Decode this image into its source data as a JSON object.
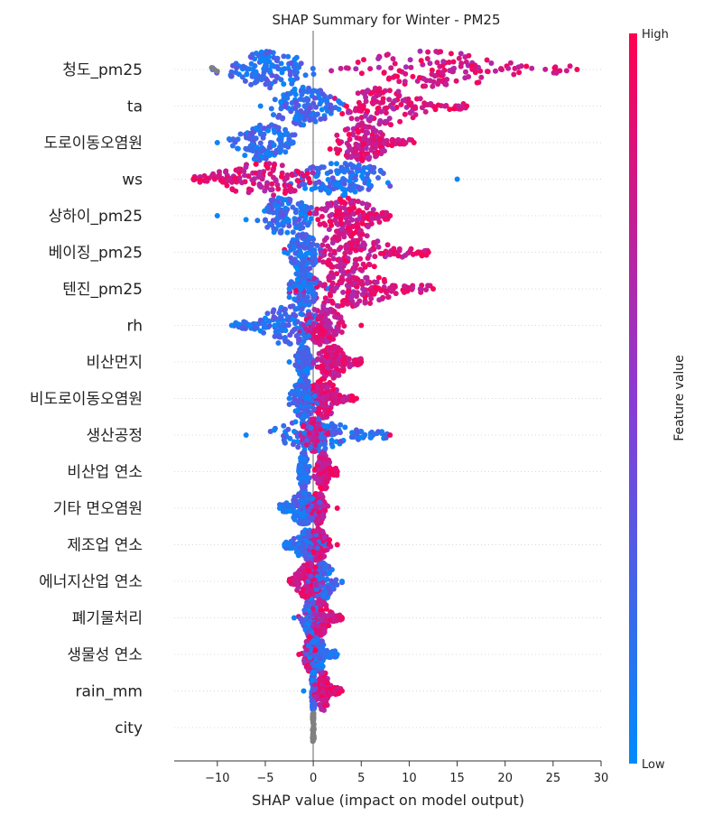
{
  "chart_data": {
    "type": "scatter",
    "subtype": "shap-beeswarm",
    "title": "SHAP Summary for Winter - PM25",
    "xlabel": "SHAP value (impact on model output)",
    "xlim": [
      -14.5,
      30
    ],
    "xticks": [
      {
        "value": -10,
        "label": "−10"
      },
      {
        "value": -5,
        "label": "−5"
      },
      {
        "value": 0,
        "label": "0"
      },
      {
        "value": 5,
        "label": "5"
      },
      {
        "value": 10,
        "label": "10"
      },
      {
        "value": 15,
        "label": "15"
      },
      {
        "value": 20,
        "label": "20"
      },
      {
        "value": 25,
        "label": "25"
      },
      {
        "value": 30,
        "label": "30"
      }
    ],
    "colorbar": {
      "label": "Feature value",
      "high": "High",
      "low": "Low",
      "high_color": "#ff0051",
      "low_color": "#008bfb"
    },
    "missing_color": "#808080",
    "features": [
      {
        "name": "청도_pm25",
        "min": -10.5,
        "max": 27.5,
        "low_center": -4.5,
        "high_center": 12,
        "low_spread": 3.2,
        "high_spread": 7,
        "bulk_height": 0.28,
        "tail_range": [
          14,
          27.5
        ],
        "grey_tail": true
      },
      {
        "name": "ta",
        "min": -5.5,
        "max": 16,
        "low_center": -1,
        "high_center": 7,
        "low_spread": 2.5,
        "high_spread": 3.5,
        "bulk_height": 0.3,
        "tail_range": [
          10,
          16
        ]
      },
      {
        "name": "도로이동오염원",
        "min": -10,
        "max": 10.5,
        "low_center": -5,
        "high_center": 5,
        "low_spread": 2.5,
        "high_spread": 2.5,
        "bulk_height": 0.28,
        "tail_range": [
          6,
          10.5
        ]
      },
      {
        "name": "ws",
        "min": -12.5,
        "max": 15,
        "low_center": 3,
        "high_center": -5,
        "low_spread": 4,
        "high_spread": 4,
        "bulk_height": 0.25,
        "tail_range": [
          -12.5,
          -8
        ]
      },
      {
        "name": "상하이_pm25",
        "min": -10,
        "max": 8,
        "low_center": -3,
        "high_center": 3.5,
        "low_spread": 2.5,
        "high_spread": 2.5,
        "bulk_height": 0.28,
        "tail_range": [
          5,
          8
        ]
      },
      {
        "name": "베이징_pm25",
        "min": -3,
        "max": 12,
        "low_center": -1,
        "high_center": 4,
        "low_spread": 1.2,
        "high_spread": 3.5,
        "bulk_height": 0.3,
        "tail_range": [
          7,
          12
        ]
      },
      {
        "name": "텐진_pm25",
        "min": -2.5,
        "max": 12.5,
        "low_center": -1,
        "high_center": 3.5,
        "low_spread": 1.2,
        "high_spread": 3.5,
        "bulk_height": 0.28,
        "tail_range": [
          6,
          12.5
        ]
      },
      {
        "name": "rh",
        "min": -8.5,
        "max": 5,
        "low_center": -2.5,
        "high_center": 1,
        "low_spread": 2.5,
        "high_spread": 1.5,
        "bulk_height": 0.3,
        "tail_range": [
          -8.5,
          -5
        ]
      },
      {
        "name": "비산먼지",
        "min": -2.5,
        "max": 5,
        "low_center": -1,
        "high_center": 2,
        "low_spread": 0.6,
        "high_spread": 1.2,
        "bulk_height": 0.25,
        "tail_range": [
          3,
          5
        ]
      },
      {
        "name": "비도로이동오염원",
        "min": -2.5,
        "max": 4.5,
        "low_center": -1,
        "high_center": 1,
        "low_spread": 1.0,
        "high_spread": 1.2,
        "bulk_height": 0.3,
        "tail_range": [
          2,
          4.5
        ]
      },
      {
        "name": "생산공정",
        "min": -7,
        "max": 8,
        "low_center": 0,
        "high_center": 0,
        "low_spread": 3,
        "high_spread": 1,
        "bulk_height": 0.25,
        "tail_range": [
          4,
          8
        ]
      },
      {
        "name": "비산업 연소",
        "min": -1.5,
        "max": 2.5,
        "low_center": -1,
        "high_center": 1,
        "low_spread": 0.4,
        "high_spread": 0.6,
        "bulk_height": 0.3,
        "tail_range": [
          1.5,
          2.5
        ]
      },
      {
        "name": "기타 면오염원",
        "min": -3.5,
        "max": 2.5,
        "low_center": -1,
        "high_center": 0.5,
        "low_spread": 1.2,
        "high_spread": 0.6,
        "bulk_height": 0.25,
        "tail_range": [
          -3.5,
          -2
        ]
      },
      {
        "name": "제조업 연소",
        "min": -3,
        "max": 2.5,
        "low_center": -0.5,
        "high_center": 0.5,
        "low_spread": 1.2,
        "high_spread": 0.8,
        "bulk_height": 0.25,
        "tail_range": [
          -3,
          -2
        ]
      },
      {
        "name": "에너지산업 연소",
        "min": -2.5,
        "max": 3,
        "low_center": 1,
        "high_center": -0.5,
        "low_spread": 1.0,
        "high_spread": 1.0,
        "bulk_height": 0.28,
        "tail_range": [
          -2.5,
          -1.5
        ]
      },
      {
        "name": "폐기물처리",
        "min": -2,
        "max": 3,
        "low_center": -0.3,
        "high_center": 0.5,
        "low_spread": 0.7,
        "high_spread": 1.0,
        "bulk_height": 0.28,
        "tail_range": [
          1.5,
          3
        ]
      },
      {
        "name": "생물성 연소",
        "min": -1.5,
        "max": 2.5,
        "low_center": 0.3,
        "high_center": -0.3,
        "low_spread": 0.8,
        "high_spread": 0.5,
        "bulk_height": 0.28,
        "tail_range": [
          1,
          2.5
        ]
      },
      {
        "name": "rain_mm",
        "min": -1,
        "max": 3,
        "low_center": 0,
        "high_center": 1,
        "low_spread": 0.15,
        "high_spread": 0.6,
        "bulk_height": 0.3,
        "tail_range": [
          1.5,
          3
        ]
      },
      {
        "name": "city",
        "min": 0,
        "max": 0,
        "low_center": 0,
        "high_center": 0,
        "low_spread": 0,
        "high_spread": 0,
        "bulk_height": 0.3,
        "tail_range": [
          0,
          0
        ],
        "grey_only": true
      }
    ]
  }
}
